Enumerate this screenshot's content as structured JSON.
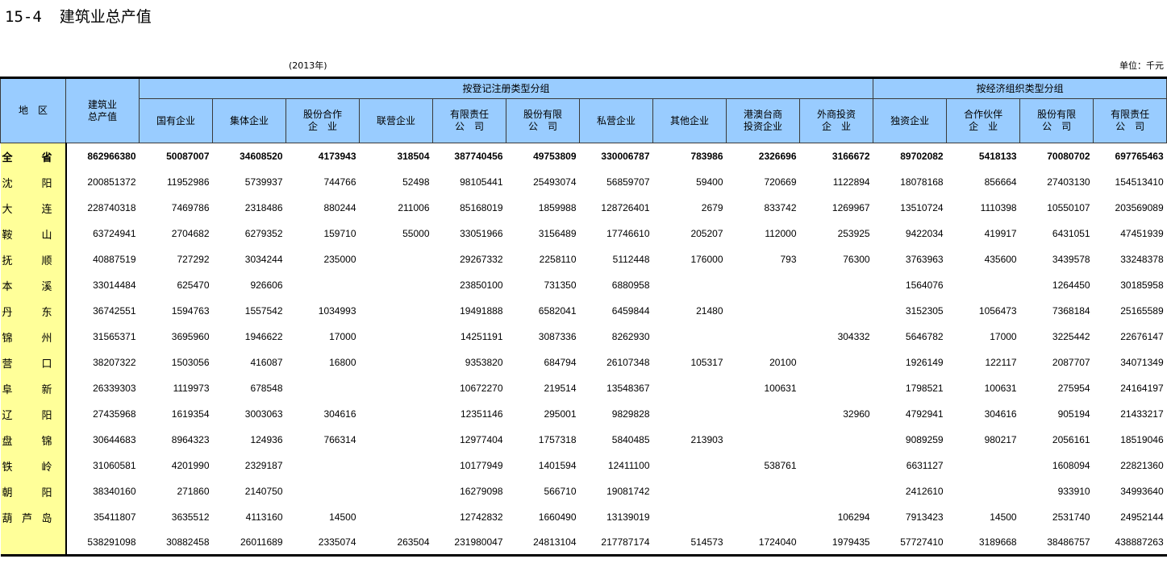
{
  "title": {
    "number": "15-4",
    "text": "建筑业总产值"
  },
  "year": "(2013年)",
  "unit": "单位：千元",
  "header": {
    "region": "地　区",
    "total": "建筑业\n总产值",
    "group1": "按登记注册类型分组",
    "group2": "按经济组织类型分组",
    "group1_cols": [
      "国有企业",
      "集体企业",
      "股份合作\n企　业",
      "联营企业",
      "有限责任\n公　司",
      "股份有限\n公　司",
      "私营企业",
      "其他企业",
      "港澳台商\n投资企业",
      "外商投资\n企　业"
    ],
    "group2_cols": [
      "独资企业",
      "合作伙伴\n企　业",
      "股份有限\n公　司",
      "有限责任\n公　司"
    ]
  },
  "rows": [
    {
      "region": "全 省",
      "bold": true,
      "values": [
        "862966380",
        "50087007",
        "34608520",
        "4173943",
        "318504",
        "387740456",
        "49753809",
        "330006787",
        "783986",
        "2326696",
        "3166672",
        "89702082",
        "5418133",
        "70080702",
        "697765463"
      ]
    },
    {
      "region": "沈 阳",
      "values": [
        "200851372",
        "11952986",
        "5739937",
        "744766",
        "52498",
        "98105441",
        "25493074",
        "56859707",
        "59400",
        "720669",
        "1122894",
        "18078168",
        "856664",
        "27403130",
        "154513410"
      ]
    },
    {
      "region": "大 连",
      "values": [
        "228740318",
        "7469786",
        "2318486",
        "880244",
        "211006",
        "85168019",
        "1859988",
        "128726401",
        "2679",
        "833742",
        "1269967",
        "13510724",
        "1110398",
        "10550107",
        "203569089"
      ]
    },
    {
      "region": "鞍 山",
      "values": [
        "63724941",
        "2704682",
        "6279352",
        "159710",
        "55000",
        "33051966",
        "3156489",
        "17746610",
        "205207",
        "112000",
        "253925",
        "9422034",
        "419917",
        "6431051",
        "47451939"
      ]
    },
    {
      "region": "抚 顺",
      "values": [
        "40887519",
        "727292",
        "3034244",
        "235000",
        "",
        "29267332",
        "2258110",
        "5112448",
        "176000",
        "793",
        "76300",
        "3763963",
        "435600",
        "3439578",
        "33248378"
      ]
    },
    {
      "region": "本 溪",
      "values": [
        "33014484",
        "625470",
        "926606",
        "",
        "",
        "23850100",
        "731350",
        "6880958",
        "",
        "",
        "",
        "1564076",
        "",
        "1264450",
        "30185958"
      ]
    },
    {
      "region": "丹 东",
      "values": [
        "36742551",
        "1594763",
        "1557542",
        "1034993",
        "",
        "19491888",
        "6582041",
        "6459844",
        "21480",
        "",
        "",
        "3152305",
        "1056473",
        "7368184",
        "25165589"
      ]
    },
    {
      "region": "锦 州",
      "values": [
        "31565371",
        "3695960",
        "1946622",
        "17000",
        "",
        "14251191",
        "3087336",
        "8262930",
        "",
        "",
        "304332",
        "5646782",
        "17000",
        "3225442",
        "22676147"
      ]
    },
    {
      "region": "营 口",
      "values": [
        "38207322",
        "1503056",
        "416087",
        "16800",
        "",
        "9353820",
        "684794",
        "26107348",
        "105317",
        "20100",
        "",
        "1926149",
        "122117",
        "2087707",
        "34071349"
      ]
    },
    {
      "region": "阜 新",
      "values": [
        "26339303",
        "1119973",
        "678548",
        "",
        "",
        "10672270",
        "219514",
        "13548367",
        "",
        "100631",
        "",
        "1798521",
        "100631",
        "275954",
        "24164197"
      ]
    },
    {
      "region": "辽 阳",
      "values": [
        "27435968",
        "1619354",
        "3003063",
        "304616",
        "",
        "12351146",
        "295001",
        "9829828",
        "",
        "",
        "32960",
        "4792941",
        "304616",
        "905194",
        "21433217"
      ]
    },
    {
      "region": "盘 锦",
      "values": [
        "30644683",
        "8964323",
        "124936",
        "766314",
        "",
        "12977404",
        "1757318",
        "5840485",
        "213903",
        "",
        "",
        "9089259",
        "980217",
        "2056161",
        "18519046"
      ]
    },
    {
      "region": "铁 岭",
      "values": [
        "31060581",
        "4201990",
        "2329187",
        "",
        "",
        "10177949",
        "1401594",
        "12411100",
        "",
        "538761",
        "",
        "6631127",
        "",
        "1608094",
        "22821360"
      ]
    },
    {
      "region": "朝 阳",
      "values": [
        "38340160",
        "271860",
        "2140750",
        "",
        "",
        "16279098",
        "566710",
        "19081742",
        "",
        "",
        "",
        "2412610",
        "",
        "933910",
        "34993640"
      ]
    },
    {
      "region": "葫 芦 岛",
      "values": [
        "35411807",
        "3635512",
        "4113160",
        "14500",
        "",
        "12742832",
        "1660490",
        "13139019",
        "",
        "",
        "106294",
        "7913423",
        "14500",
        "2531740",
        "24952144"
      ]
    },
    {
      "region": "",
      "values": [
        "538291098",
        "30882458",
        "26011689",
        "2335074",
        "263504",
        "231980047",
        "24813104",
        "217787174",
        "514573",
        "1724040",
        "1979435",
        "57727410",
        "3189668",
        "38486757",
        "438887263"
      ]
    }
  ],
  "colors": {
    "header_bg": "#99CCFF",
    "region_bg": "#FFFF99"
  }
}
